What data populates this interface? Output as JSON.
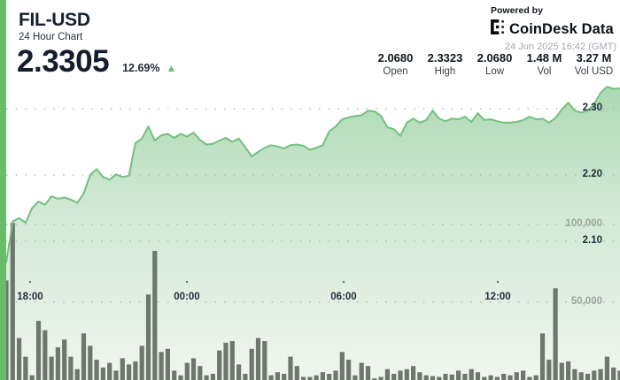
{
  "header": {
    "symbol": "FIL-USD",
    "subtitle": "24 Hour Chart",
    "price": "2.3305",
    "change_percent": "12.69%",
    "up_arrow": "▲",
    "powered_by": "Powered by",
    "brand": "CoinDesk Data",
    "timestamp": "24 Jun 2025 16:42 (GMT)",
    "stats": [
      {
        "value": "2.0680",
        "label": "Open"
      },
      {
        "value": "2.3323",
        "label": "High"
      },
      {
        "value": "2.0680",
        "label": "Low"
      },
      {
        "value": "1.48 M",
        "label": "Vol"
      },
      {
        "value": "3.27 M",
        "label": "Vol USD"
      }
    ]
  },
  "colors": {
    "accent_green": "#6abd68",
    "line_green": "#72c17f",
    "area_top": "#a7d7ae",
    "area_bottom": "#f0f6ef",
    "volume_bar": "#6d776d",
    "grid_dot": "#a8b0a8",
    "price_label": "#252f3d",
    "volume_label": "#9ba69d",
    "up_green": "#6cc06e"
  },
  "chart_data": {
    "type": "area",
    "title": "FIL-USD 24 Hour Chart",
    "x_axis": {
      "unit": "time (GMT)",
      "ticks": [
        {
          "label": "18:00",
          "x": 34
        },
        {
          "label": "00:00",
          "x": 211
        },
        {
          "label": "06:00",
          "x": 388
        },
        {
          "label": "12:00",
          "x": 562
        }
      ]
    },
    "price_axis": {
      "side": "right",
      "ticks": [
        {
          "label": "2.30",
          "value": 2.3
        },
        {
          "label": "2.20",
          "value": 2.2
        },
        {
          "label": "2.10",
          "value": 2.1
        }
      ]
    },
    "volume_axis": {
      "side": "right",
      "ticks": [
        {
          "label": "100,000",
          "value": 100000
        },
        {
          "label": "50,000",
          "value": 50000
        }
      ]
    },
    "grid": "dotted",
    "series": [
      {
        "name": "price",
        "style": "area-line",
        "values": [
          2.068,
          2.13,
          2.135,
          2.128,
          2.15,
          2.16,
          2.155,
          2.168,
          2.164,
          2.166,
          2.163,
          2.158,
          2.172,
          2.2,
          2.209,
          2.197,
          2.193,
          2.201,
          2.197,
          2.199,
          2.248,
          2.255,
          2.273,
          2.252,
          2.26,
          2.262,
          2.256,
          2.262,
          2.258,
          2.264,
          2.253,
          2.246,
          2.247,
          2.252,
          2.256,
          2.25,
          2.255,
          2.242,
          2.228,
          2.235,
          2.241,
          2.245,
          2.243,
          2.24,
          2.245,
          2.246,
          2.244,
          2.238,
          2.241,
          2.245,
          2.266,
          2.273,
          2.284,
          2.287,
          2.289,
          2.29,
          2.297,
          2.296,
          2.289,
          2.272,
          2.269,
          2.259,
          2.279,
          2.285,
          2.279,
          2.283,
          2.297,
          2.285,
          2.281,
          2.285,
          2.284,
          2.288,
          2.28,
          2.293,
          2.283,
          2.284,
          2.281,
          2.279,
          2.279,
          2.28,
          2.283,
          2.288,
          2.284,
          2.285,
          2.279,
          2.286,
          2.299,
          2.309,
          2.297,
          2.294,
          2.297,
          2.307,
          2.324,
          2.333,
          2.33,
          2.3305
        ]
      },
      {
        "name": "volume",
        "style": "bars",
        "values": [
          64000,
          101000,
          27000,
          15000,
          3000,
          38000,
          32000,
          15000,
          21000,
          26000,
          15000,
          7000,
          30000,
          22000,
          13000,
          8000,
          11000,
          6000,
          14000,
          10000,
          12000,
          22000,
          55000,
          83000,
          18000,
          20000,
          6000,
          3000,
          11000,
          14000,
          9000,
          3000,
          4000,
          19000,
          24000,
          25000,
          10000,
          4000,
          20000,
          27000,
          25000,
          3000,
          5000,
          4000,
          15000,
          9000,
          2000,
          2000,
          3000,
          5000,
          4000,
          6000,
          18000,
          13000,
          3000,
          11000,
          9000,
          1000,
          2000,
          7000,
          4000,
          6000,
          7000,
          9000,
          5000,
          3000,
          2500,
          2000,
          4000,
          3500,
          6000,
          4000,
          7000,
          5000,
          2000,
          3000,
          2000,
          4000,
          3000,
          5000,
          6000,
          2000,
          3000,
          30000,
          13000,
          59000,
          11000,
          12000,
          7000,
          5000,
          4000,
          6000,
          7000,
          15000,
          8000,
          6000
        ]
      }
    ]
  }
}
